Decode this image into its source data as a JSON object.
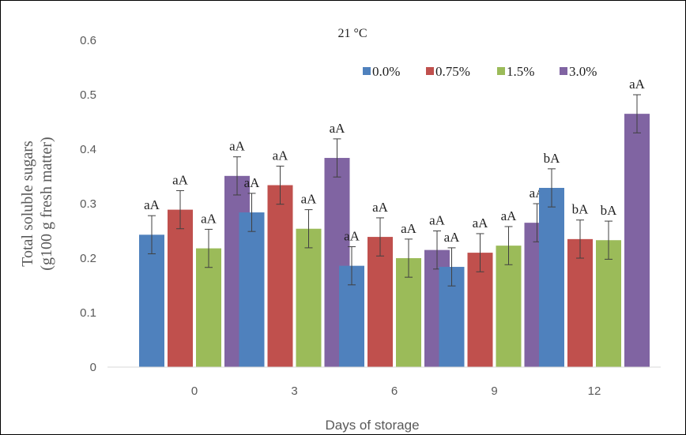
{
  "chart_data": {
    "type": "bar",
    "title": "21 °C",
    "xlabel": "Days of storage",
    "ylabel_lines": [
      "Total soluble sugars",
      "(g100 g fresh matter)"
    ],
    "categories": [
      "0",
      "3",
      "6",
      "9",
      "12"
    ],
    "ylim": [
      0,
      0.6
    ],
    "yticks": [
      "0",
      "0.1",
      "0.2",
      "0.3",
      "0.4",
      "0.5",
      "0.6"
    ],
    "grid": false,
    "legend_position": "top-right",
    "series": [
      {
        "name": "0.0%",
        "color": "#4f81bd",
        "values": [
          0.243,
          0.284,
          0.186,
          0.184,
          0.329
        ],
        "errors": [
          0.035,
          0.035,
          0.035,
          0.035,
          0.035
        ],
        "labels": [
          "aA",
          "aA",
          "aA",
          "aA",
          "bA"
        ]
      },
      {
        "name": "0.75%",
        "color": "#c0504d",
        "values": [
          0.289,
          0.334,
          0.239,
          0.21,
          0.235
        ],
        "errors": [
          0.035,
          0.035,
          0.035,
          0.035,
          0.035
        ],
        "labels": [
          "aA",
          "aA",
          "aA",
          "aA",
          "bA"
        ]
      },
      {
        "name": "1.5%",
        "color": "#9bbb59",
        "values": [
          0.218,
          0.254,
          0.2,
          0.223,
          0.233
        ],
        "errors": [
          0.035,
          0.035,
          0.035,
          0.035,
          0.035
        ],
        "labels": [
          "aA",
          "aA",
          "aA",
          "aA",
          "bA"
        ]
      },
      {
        "name": "3.0%",
        "color": "#8064a2",
        "values": [
          0.351,
          0.384,
          0.215,
          0.265,
          0.465
        ],
        "errors": [
          0.035,
          0.035,
          0.035,
          0.035,
          0.035
        ],
        "labels": [
          "aA",
          "aA",
          "aA",
          "aA",
          "aA"
        ]
      }
    ]
  }
}
